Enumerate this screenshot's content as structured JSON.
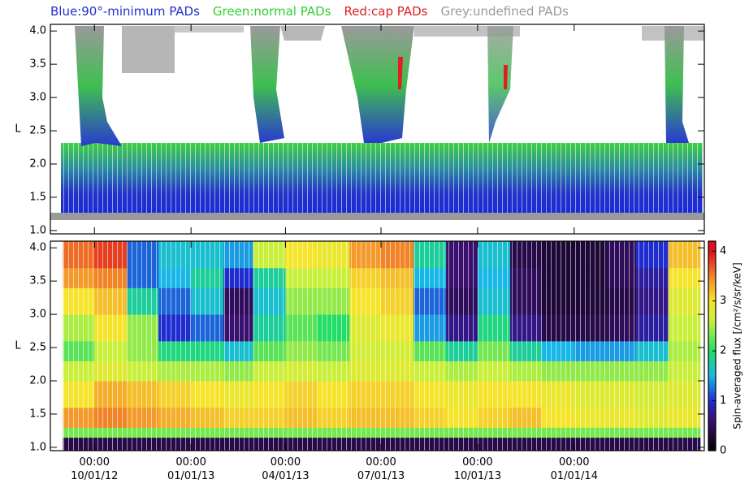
{
  "chart_data": [
    {
      "type": "pad-map",
      "legend": [
        {
          "name": "Blue:90°-minimum PADs",
          "color": "#1f2fd0"
        },
        {
          "name": "Green:normal PADs",
          "color": "#2fd02f"
        },
        {
          "name": "Red:cap PADs",
          "color": "#e02020"
        },
        {
          "name": "Grey:undefined PADs",
          "color": "#9a9a9a"
        }
      ],
      "ylabel": "L",
      "ylim": [
        0.95,
        4.1
      ],
      "yticks": [
        {
          "value": 1,
          "label": "1.0"
        },
        {
          "value": 1.5,
          "label": "1.5"
        },
        {
          "value": 2,
          "label": "2.0"
        },
        {
          "value": 2.5,
          "label": "2.5"
        },
        {
          "value": 3,
          "label": "3.0"
        },
        {
          "value": 3.5,
          "label": "3.5"
        },
        {
          "value": 4,
          "label": "4.0"
        }
      ]
    },
    {
      "type": "heatmap",
      "ylabel": "L",
      "ylim": [
        0.95,
        4.1
      ],
      "yticks": [
        {
          "value": 1,
          "label": "1.0"
        },
        {
          "value": 1.5,
          "label": "1.5"
        },
        {
          "value": 2,
          "label": "2.0"
        },
        {
          "value": 2.5,
          "label": "2.5"
        },
        {
          "value": 3,
          "label": "3.0"
        },
        {
          "value": 3.5,
          "label": "3.5"
        },
        {
          "value": 4,
          "label": "4.0"
        }
      ],
      "xlim": [
        "2012-08-20",
        "2014-05-05"
      ],
      "xticks": [
        {
          "value": "2012-10-01",
          "label": "00:00 10/01/12"
        },
        {
          "value": "2013-01-01",
          "label": "00:00 01/01/13"
        },
        {
          "value": "2013-04-01",
          "label": "00:00 04/01/13"
        },
        {
          "value": "2013-07-01",
          "label": "00:00 07/01/13"
        },
        {
          "value": "2013-10-01",
          "label": "00:00 10/01/13"
        },
        {
          "value": "2014-01-01",
          "label": "00:00 01/01/14"
        }
      ],
      "x_edges": [
        "2012-09-01",
        "2012-10-01",
        "2012-11-01",
        "2012-12-01",
        "2013-01-01",
        "2013-02-01",
        "2013-03-01",
        "2013-04-01",
        "2013-05-01",
        "2013-06-01",
        "2013-07-01",
        "2013-08-01",
        "2013-09-01",
        "2013-10-01",
        "2013-11-01",
        "2013-12-01",
        "2014-01-01",
        "2014-02-01",
        "2014-03-01",
        "2014-04-01",
        "2014-05-01"
      ],
      "y_edges": [
        0.95,
        1.15,
        1.3,
        1.6,
        2.0,
        2.3,
        2.6,
        3.0,
        3.4,
        3.7,
        4.1
      ],
      "z": [
        [
          0.4,
          0.4,
          0.4,
          0.4,
          0.4,
          0.4,
          0.4,
          0.4,
          0.4,
          0.4,
          0.4,
          0.4,
          0.4,
          0.4,
          0.4,
          0.4,
          0.4,
          0.4,
          0.4,
          0.4
        ],
        [
          2.3,
          2.3,
          2.3,
          2.3,
          2.3,
          2.3,
          2.3,
          2.3,
          2.3,
          2.3,
          2.3,
          2.3,
          2.3,
          2.3,
          2.3,
          2.3,
          2.3,
          2.3,
          2.3,
          2.3
        ],
        [
          3.4,
          3.5,
          3.4,
          3.3,
          3.2,
          3.1,
          3.1,
          3.2,
          3.1,
          3.2,
          3.2,
          3.1,
          3.0,
          3.1,
          3.2,
          3.0,
          2.9,
          2.9,
          2.8,
          2.9
        ],
        [
          3.0,
          3.3,
          3.2,
          3.1,
          3.0,
          2.9,
          3.0,
          3.1,
          3.0,
          3.1,
          3.1,
          3.0,
          2.9,
          3.0,
          3.0,
          2.9,
          2.8,
          2.8,
          2.7,
          2.8
        ],
        [
          2.6,
          2.8,
          2.6,
          2.5,
          2.5,
          2.4,
          2.6,
          2.7,
          2.6,
          2.8,
          2.8,
          2.6,
          2.5,
          2.6,
          2.5,
          2.4,
          2.4,
          2.4,
          2.4,
          2.6
        ],
        [
          2.2,
          2.6,
          2.4,
          1.9,
          1.9,
          1.6,
          2.2,
          2.4,
          2.3,
          2.7,
          2.7,
          2.2,
          1.8,
          2.3,
          1.8,
          1.5,
          1.4,
          1.4,
          1.6,
          2.5
        ],
        [
          2.5,
          3.0,
          2.4,
          1.0,
          1.2,
          0.6,
          1.8,
          2.2,
          2.0,
          2.8,
          2.9,
          1.4,
          0.7,
          1.9,
          0.7,
          0.4,
          0.4,
          0.5,
          0.8,
          2.6
        ],
        [
          3.0,
          3.2,
          1.8,
          1.2,
          1.6,
          0.5,
          1.6,
          2.4,
          2.4,
          3.0,
          3.1,
          1.2,
          0.5,
          1.6,
          0.5,
          0.3,
          0.3,
          0.4,
          0.7,
          2.8
        ],
        [
          3.4,
          3.5,
          1.2,
          1.5,
          1.8,
          1.0,
          1.8,
          2.6,
          2.6,
          3.1,
          3.2,
          1.5,
          0.6,
          1.5,
          0.5,
          0.3,
          0.3,
          0.5,
          0.8,
          3.0
        ],
        [
          3.6,
          3.8,
          1.2,
          1.6,
          1.6,
          1.4,
          2.6,
          3.0,
          2.9,
          3.4,
          3.5,
          1.8,
          0.6,
          1.6,
          0.4,
          0.3,
          0.3,
          0.5,
          1.0,
          3.2
        ]
      ],
      "zlim": [
        0,
        4.2
      ],
      "colorbar_ticks": [
        0,
        1,
        2,
        3,
        4
      ],
      "colorbar_label": "Spin-averaged flux [/cm²/s/sr/keV]"
    }
  ]
}
